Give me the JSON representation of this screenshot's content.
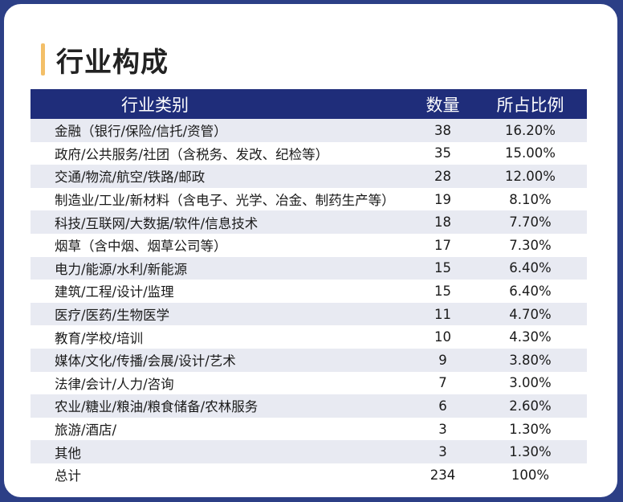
{
  "title": "行业构成",
  "table": {
    "headers": [
      "行业类别",
      "数量",
      "所占比例"
    ],
    "rows": [
      [
        "金融（银行/保险/信托/资管）",
        "38",
        "16.20%"
      ],
      [
        "政府/公共服务/社团（含税务、发改、纪检等）",
        "35",
        "15.00%"
      ],
      [
        "交通/物流/航空/铁路/邮政",
        "28",
        "12.00%"
      ],
      [
        "制造业/工业/新材料（含电子、光学、冶金、制药生产等）",
        "19",
        "8.10%"
      ],
      [
        "科技/互联网/大数据/软件/信息技术",
        "18",
        "7.70%"
      ],
      [
        "烟草（含中烟、烟草公司等）",
        "17",
        "7.30%"
      ],
      [
        "电力/能源/水利/新能源",
        "15",
        "6.40%"
      ],
      [
        "建筑/工程/设计/监理",
        "15",
        "6.40%"
      ],
      [
        "医疗/医药/生物医学",
        "11",
        "4.70%"
      ],
      [
        "教育/学校/培训",
        "10",
        "4.30%"
      ],
      [
        "媒体/文化/传播/会展/设计/艺术",
        "9",
        "3.80%"
      ],
      [
        "法律/会计/人力/咨询",
        "7",
        "3.00%"
      ],
      [
        "农业/糖业/粮油/粮食储备/农林服务",
        "6",
        "2.60%"
      ],
      [
        "旅游/酒店/",
        "3",
        "1.30%"
      ],
      [
        "其他",
        "3",
        "1.30%"
      ],
      [
        "总计",
        "234",
        "100%"
      ]
    ]
  },
  "colors": {
    "header_bg": "#1f2d7a",
    "accent_bar": "#f3bf68",
    "stripe": "#e8eaf2",
    "frame": "#2c3f86"
  }
}
